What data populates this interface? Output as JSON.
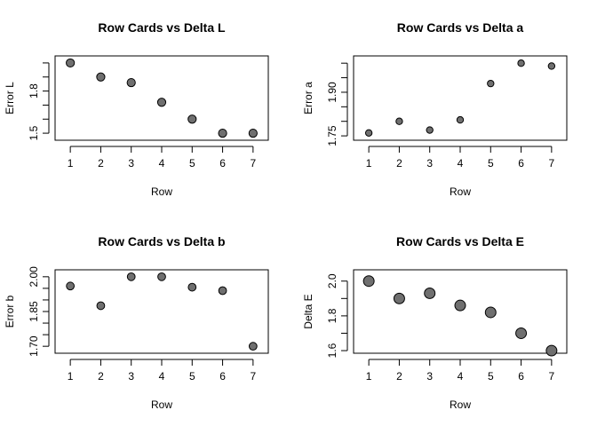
{
  "chart_data": [
    {
      "type": "scatter",
      "title": "Row Cards vs Delta L",
      "xlabel": "Row",
      "ylabel": "Error L",
      "x": [
        1,
        2,
        3,
        4,
        5,
        6,
        7
      ],
      "y": [
        2.0,
        1.9,
        1.86,
        1.72,
        1.6,
        1.5,
        1.5
      ],
      "xlim": [
        0.5,
        7.5
      ],
      "ylim": [
        1.45,
        2.05
      ],
      "xticks": [
        "1",
        "2",
        "3",
        "4",
        "5",
        "6",
        "7"
      ],
      "yticks": [
        1.5,
        1.8
      ],
      "ytick_labels": [
        "1.5",
        "1.8"
      ],
      "minor_yticks": [
        1.6,
        1.7,
        1.9,
        2.0
      ],
      "point_scale": 1.0
    },
    {
      "type": "scatter",
      "title": "Row Cards vs Delta a",
      "xlabel": "Row",
      "ylabel": "Error a",
      "x": [
        1,
        2,
        3,
        4,
        5,
        6,
        7
      ],
      "y": [
        1.76,
        1.8,
        1.77,
        1.805,
        1.93,
        2.0,
        1.99
      ],
      "xlim": [
        0.5,
        7.5
      ],
      "ylim": [
        1.735,
        2.025
      ],
      "xticks": [
        "1",
        "2",
        "3",
        "4",
        "5",
        "6",
        "7"
      ],
      "yticks": [
        1.75,
        1.9
      ],
      "ytick_labels": [
        "1.75",
        "1.90"
      ],
      "minor_yticks": [
        1.8,
        1.85,
        1.95,
        2.0
      ],
      "point_scale": 0.8
    },
    {
      "type": "scatter",
      "title": "Row Cards vs Delta b",
      "xlabel": "Row",
      "ylabel": "Error b",
      "x": [
        1,
        2,
        3,
        4,
        5,
        6,
        7
      ],
      "y": [
        1.96,
        1.875,
        2.0,
        2.0,
        1.955,
        1.94,
        1.7
      ],
      "xlim": [
        0.5,
        7.5
      ],
      "ylim": [
        1.67,
        2.03
      ],
      "xticks": [
        "1",
        "2",
        "3",
        "4",
        "5",
        "6",
        "7"
      ],
      "yticks": [
        1.7,
        1.85,
        2.0
      ],
      "ytick_labels": [
        "1.70",
        "1.85",
        "2.00"
      ],
      "minor_yticks": [
        1.75,
        1.8,
        1.9,
        1.95
      ],
      "point_scale": 0.95
    },
    {
      "type": "scatter",
      "title": "Row Cards vs Delta E",
      "xlabel": "Row",
      "ylabel": "Delta E",
      "x": [
        1,
        2,
        3,
        4,
        5,
        6,
        7
      ],
      "y": [
        2.0,
        1.9,
        1.93,
        1.86,
        1.82,
        1.7,
        1.6
      ],
      "xlim": [
        0.5,
        7.5
      ],
      "ylim": [
        1.585,
        2.065
      ],
      "xticks": [
        "1",
        "2",
        "3",
        "4",
        "5",
        "6",
        "7"
      ],
      "yticks": [
        1.6,
        1.8,
        2.0
      ],
      "ytick_labels": [
        "1.6",
        "1.8",
        "2.0"
      ],
      "minor_yticks": [
        1.7,
        1.9
      ],
      "point_scale": 1.3
    }
  ],
  "colors": {
    "point_fill": "#6f6f6f",
    "point_stroke": "#000000",
    "axis": "#000000",
    "background": "#ffffff"
  }
}
